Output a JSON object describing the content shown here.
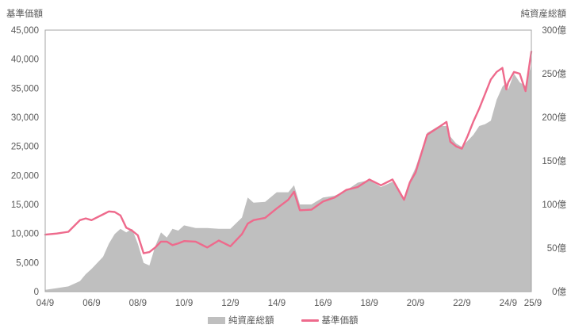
{
  "chart_data": {
    "type": "line",
    "left_axis_title": "基準価額",
    "right_axis_title": "純資産総額",
    "left_ticks": [
      "0",
      "5,000",
      "10,000",
      "15,000",
      "20,000",
      "25,000",
      "30,000",
      "35,000",
      "40,000",
      "45,000"
    ],
    "right_ticks": [
      "0億",
      "50億",
      "100億",
      "150億",
      "200億",
      "250億",
      "300億"
    ],
    "x_ticks": [
      "04/9",
      "06/9",
      "08/9",
      "10/9",
      "12/9",
      "14/9",
      "16/9",
      "18/9",
      "20/9",
      "22/9",
      "24/9",
      "25/9"
    ],
    "ylim_left": [
      0,
      45000
    ],
    "ylim_right": [
      0,
      300
    ],
    "xlim": [
      "2004-09",
      "2025-09"
    ],
    "grid": false,
    "legend_position": "bottom",
    "colors": {
      "nav_line": "#ee6a8c",
      "aum_area": "#bfbfbf"
    },
    "series": [
      {
        "name": "純資産総額",
        "kind": "area",
        "axis": "right",
        "unit": "億",
        "x": [
          "2004-09",
          "2005-03",
          "2005-09",
          "2006-03",
          "2006-06",
          "2006-09",
          "2007-03",
          "2007-06",
          "2007-09",
          "2007-12",
          "2008-03",
          "2008-06",
          "2008-09",
          "2008-12",
          "2009-03",
          "2009-06",
          "2009-09",
          "2009-12",
          "2010-03",
          "2010-06",
          "2010-09",
          "2011-03",
          "2011-09",
          "2012-03",
          "2012-09",
          "2013-03",
          "2013-06",
          "2013-09",
          "2014-03",
          "2014-09",
          "2015-03",
          "2015-06",
          "2015-09",
          "2016-03",
          "2016-09",
          "2017-03",
          "2017-09",
          "2018-03",
          "2018-09",
          "2019-03",
          "2019-09",
          "2020-03",
          "2020-06",
          "2020-09",
          "2021-03",
          "2021-09",
          "2022-01",
          "2022-03",
          "2022-06",
          "2022-09",
          "2022-12",
          "2023-03",
          "2023-06",
          "2023-09",
          "2023-12",
          "2024-03",
          "2024-06",
          "2024-08",
          "2024-09",
          "2024-12",
          "2025-03",
          "2025-06",
          "2025-09"
        ],
        "values": [
          2,
          4,
          6,
          12,
          20,
          26,
          40,
          55,
          66,
          72,
          68,
          72,
          55,
          33,
          30,
          52,
          68,
          62,
          72,
          70,
          76,
          73,
          73,
          72,
          72,
          85,
          108,
          102,
          103,
          114,
          114,
          122,
          100,
          100,
          108,
          110,
          116,
          125,
          128,
          120,
          126,
          106,
          128,
          142,
          182,
          190,
          190,
          178,
          170,
          166,
          173,
          180,
          190,
          192,
          196,
          220,
          235,
          240,
          232,
          250,
          240,
          236,
          260
        ]
      },
      {
        "name": "基準価額",
        "kind": "line",
        "axis": "left",
        "x": [
          "2004-09",
          "2005-03",
          "2005-09",
          "2006-03",
          "2006-06",
          "2006-09",
          "2007-03",
          "2007-06",
          "2007-09",
          "2007-12",
          "2008-03",
          "2008-06",
          "2008-09",
          "2008-12",
          "2009-03",
          "2009-06",
          "2009-09",
          "2009-12",
          "2010-03",
          "2010-06",
          "2010-09",
          "2011-03",
          "2011-09",
          "2012-03",
          "2012-09",
          "2013-03",
          "2013-06",
          "2013-09",
          "2014-03",
          "2014-09",
          "2015-03",
          "2015-06",
          "2015-09",
          "2016-03",
          "2016-09",
          "2017-03",
          "2017-09",
          "2018-03",
          "2018-09",
          "2019-03",
          "2019-09",
          "2020-03",
          "2020-06",
          "2020-09",
          "2021-03",
          "2021-09",
          "2022-01",
          "2022-03",
          "2022-06",
          "2022-09",
          "2022-12",
          "2023-03",
          "2023-06",
          "2023-09",
          "2023-12",
          "2024-03",
          "2024-06",
          "2024-08",
          "2024-09",
          "2024-12",
          "2025-03",
          "2025-06",
          "2025-09"
        ],
        "values": [
          9800,
          10000,
          10300,
          12300,
          12600,
          12300,
          13300,
          13800,
          13700,
          13100,
          11000,
          10500,
          9700,
          6600,
          6800,
          7600,
          8600,
          8600,
          8000,
          8300,
          8700,
          8600,
          7600,
          8800,
          7800,
          9900,
          11700,
          12300,
          12700,
          14300,
          15800,
          17200,
          14000,
          14100,
          15500,
          16200,
          17500,
          18000,
          19300,
          18300,
          19300,
          15800,
          18800,
          20500,
          27000,
          28300,
          29200,
          25800,
          25000,
          24600,
          26800,
          29300,
          31500,
          34000,
          36500,
          37800,
          38500,
          34800,
          36000,
          37800,
          37500,
          34500,
          41300
        ]
      }
    ]
  }
}
